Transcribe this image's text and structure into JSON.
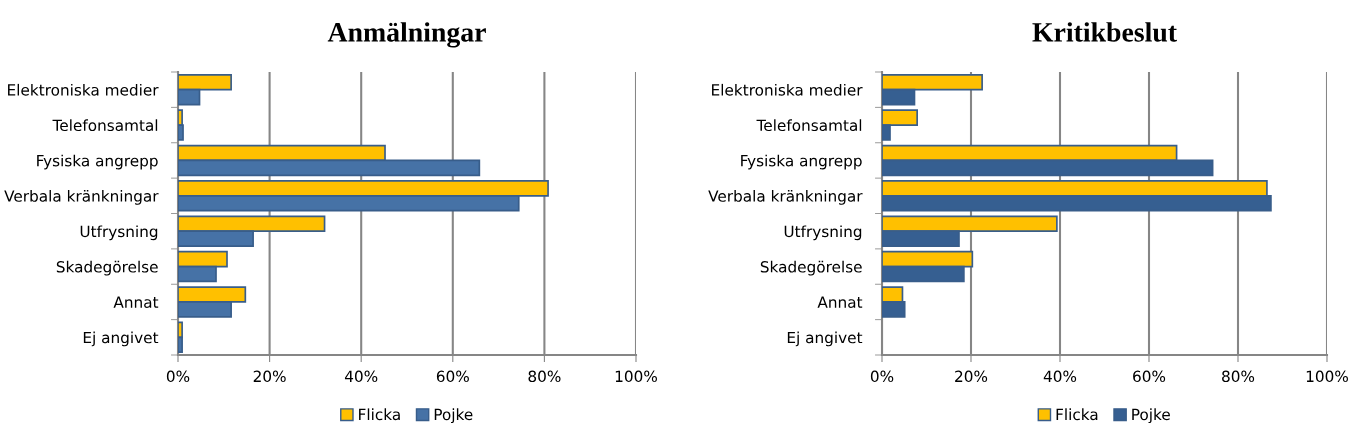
{
  "chart_data": [
    {
      "type": "bar",
      "orientation": "horizontal",
      "title": "Anmälningar",
      "categories": [
        "Elektroniska medier",
        "Telefonsamtal",
        "Fysiska angrepp",
        "Verbala kränkningar",
        "Utfrysning",
        "Skadegörelse",
        "Annat",
        "Ej angivet"
      ],
      "series": [
        {
          "name": "Flicka",
          "color": "#ffc000",
          "values": [
            11.6,
            0.9,
            45.2,
            80.8,
            32.0,
            10.7,
            14.7,
            0.9
          ]
        },
        {
          "name": "Pojke",
          "color": "#4672a6",
          "values": [
            4.7,
            1.1,
            65.8,
            74.4,
            16.4,
            8.3,
            11.6,
            0.9
          ]
        }
      ],
      "xlim": [
        0,
        100
      ],
      "xticks": [
        {
          "value": 0,
          "label": "0%"
        },
        {
          "value": 20,
          "label": "20%"
        },
        {
          "value": 40,
          "label": "40%"
        },
        {
          "value": 60,
          "label": "60%"
        },
        {
          "value": 80,
          "label": "80%"
        },
        {
          "value": 100,
          "label": "100%"
        }
      ],
      "grid": "x",
      "legend": "bottom"
    },
    {
      "type": "bar",
      "orientation": "horizontal",
      "title": "Kritikbeslut",
      "categories": [
        "Elektroniska medier",
        "Telefonsamtal",
        "Fysiska angrepp",
        "Verbala kränkningar",
        "Utfrysning",
        "Skadegörelse",
        "Annat",
        "Ej angivet"
      ],
      "series": [
        {
          "name": "Flicka",
          "color": "#ffc000",
          "values": [
            22.5,
            7.9,
            66.2,
            86.5,
            39.3,
            20.3,
            4.6,
            null
          ]
        },
        {
          "name": "Pojke",
          "color": "#365f91",
          "values": [
            7.3,
            1.8,
            74.3,
            87.4,
            17.3,
            18.4,
            5.1,
            null
          ]
        }
      ],
      "xlim": [
        0,
        100
      ],
      "xticks": [
        {
          "value": 0,
          "label": "0%"
        },
        {
          "value": 20,
          "label": "20%"
        },
        {
          "value": 40,
          "label": "40%"
        },
        {
          "value": 60,
          "label": "60%"
        },
        {
          "value": 80,
          "label": "80%"
        },
        {
          "value": 100,
          "label": "100%"
        }
      ],
      "grid": "x",
      "legend": "bottom"
    }
  ]
}
